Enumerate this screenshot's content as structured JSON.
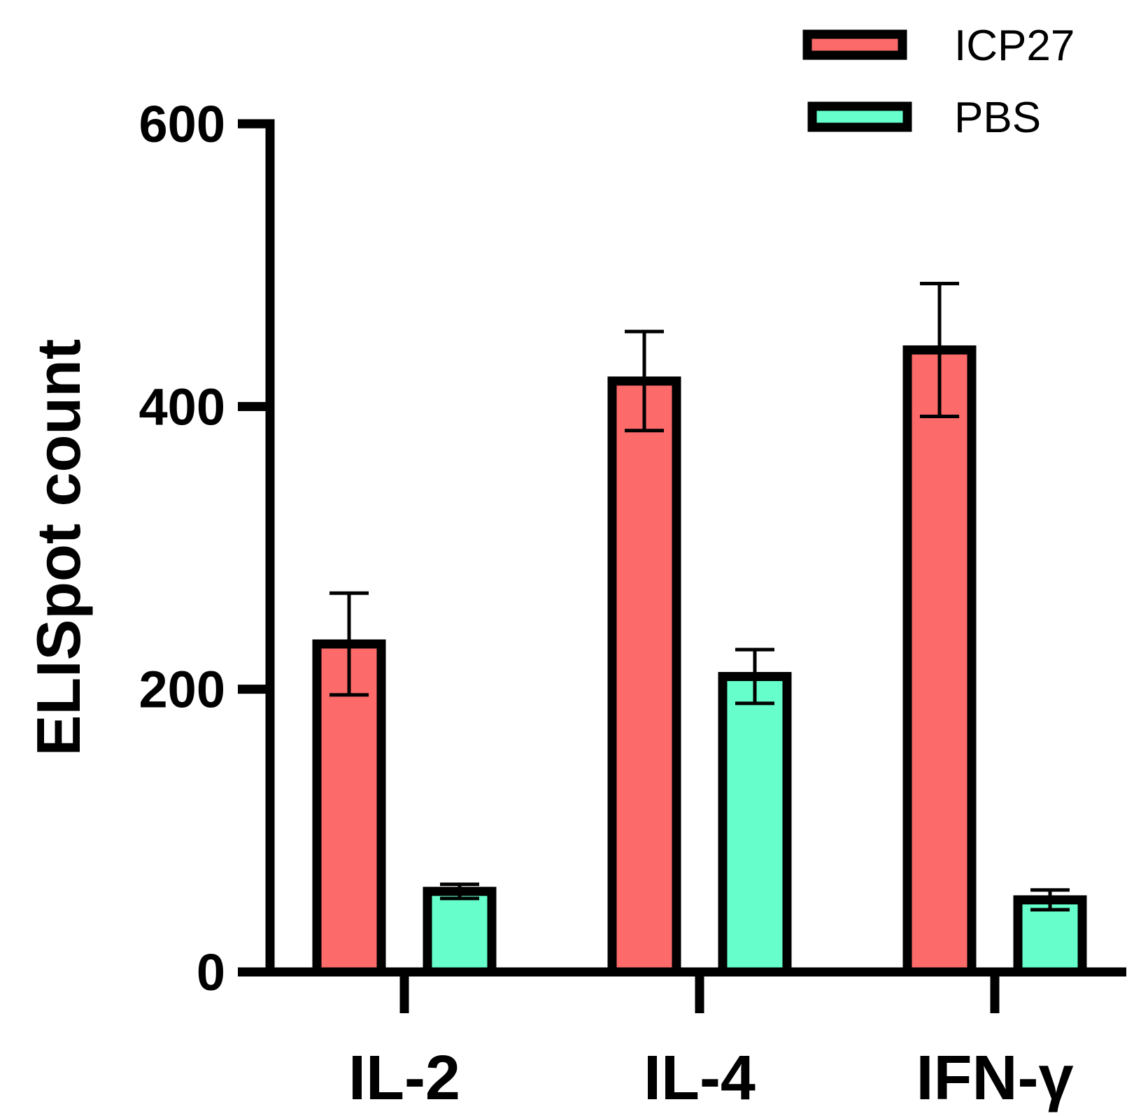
{
  "chart_data": {
    "type": "bar",
    "title": "",
    "xlabel": "",
    "ylabel": "ELISpot count",
    "ylim": [
      0,
      600
    ],
    "yticks": [
      0,
      200,
      400,
      600
    ],
    "categories": [
      "IL-2",
      "IL-4",
      "IFN-γ"
    ],
    "series": [
      {
        "name": "ICP27",
        "color": "#fc6a6a",
        "values": [
          232,
          418,
          440
        ],
        "errors": [
          36,
          35,
          47
        ]
      },
      {
        "name": "PBS",
        "color": "#66ffcc",
        "values": [
          57,
          209,
          51
        ],
        "errors": [
          5,
          19,
          7
        ]
      }
    ],
    "legend_position": "top-right",
    "grid": false
  }
}
